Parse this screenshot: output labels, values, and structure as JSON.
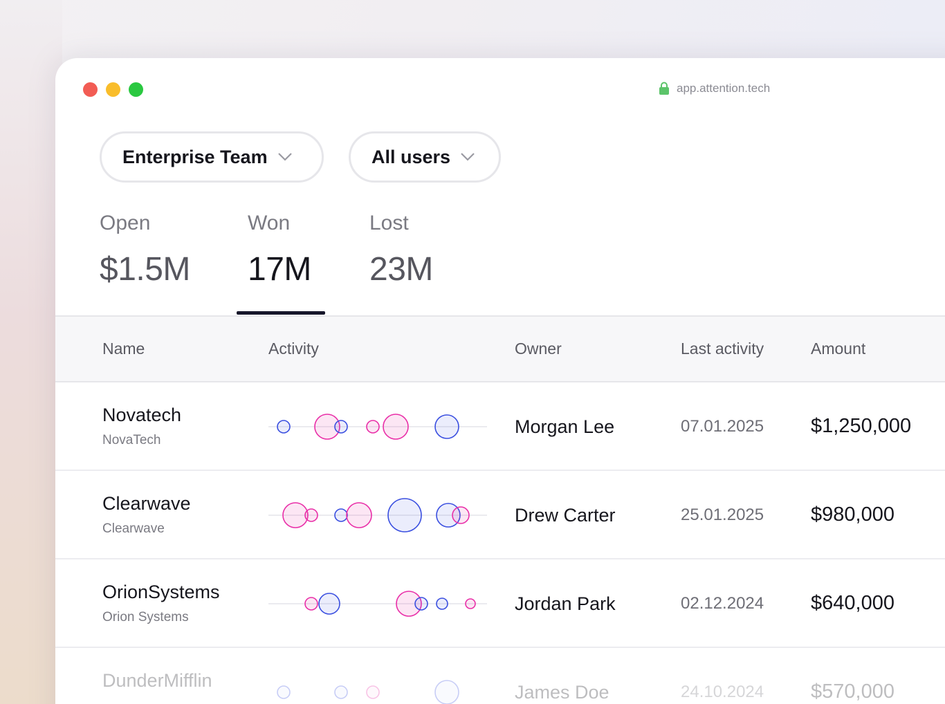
{
  "browser": {
    "url": "app.attention.tech",
    "lock_icon": "lock-icon"
  },
  "filters": [
    {
      "label": "Enterprise Team",
      "icon": "chevron-down-icon"
    },
    {
      "label": "All users",
      "icon": "chevron-down-icon"
    }
  ],
  "tabs": [
    {
      "label": "Open",
      "value": "$1.5M",
      "active": false
    },
    {
      "label": "Won",
      "value": "17M",
      "active": true
    },
    {
      "label": "Lost",
      "value": "23M",
      "active": false
    }
  ],
  "table": {
    "columns": [
      "Name",
      "Activity",
      "Owner",
      "Last activity",
      "Amount"
    ],
    "rows": [
      {
        "name": "Novatech",
        "company": "NovaTech",
        "owner": "Morgan Lee",
        "last_activity": "07.01.2025",
        "amount": "$1,250,000"
      },
      {
        "name": "Clearwave",
        "company": "Clearwave",
        "owner": "Drew Carter",
        "last_activity": "25.01.2025",
        "amount": "$980,000"
      },
      {
        "name": "OrionSystems",
        "company": "Orion Systems",
        "owner": "Jordan Park",
        "last_activity": "02.12.2024",
        "amount": "$640,000"
      },
      {
        "name": "DunderMifflin",
        "company": "",
        "owner": "James Doe",
        "last_activity": "24.10.2024",
        "amount": "$570,000"
      }
    ]
  },
  "colors": {
    "activity_blue": "#3a4fe0",
    "activity_pink": "#e92fa8",
    "active_tab": "#16162a"
  }
}
